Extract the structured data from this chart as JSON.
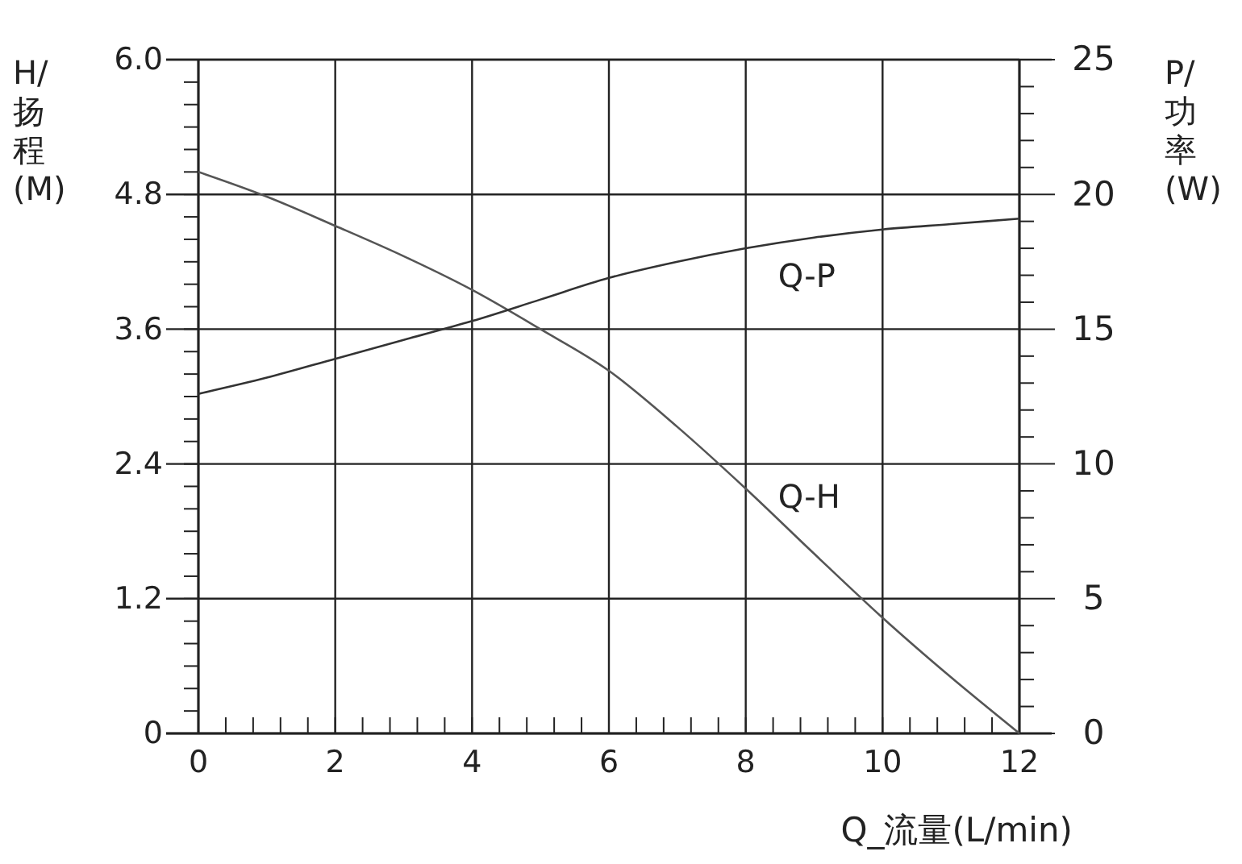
{
  "chart_data": {
    "type": "line",
    "xlabel": "Q_流量(L/min)",
    "ylabel": "H/扬程(M)",
    "y2label": "P/功率(W)",
    "x": [
      0,
      1,
      2,
      3,
      4,
      5,
      6,
      7,
      8,
      9,
      10,
      11,
      12
    ],
    "series": [
      {
        "name": "Q-H",
        "color": "#555555",
        "values": [
          5.0,
          4.78,
          4.52,
          4.25,
          3.95,
          3.6,
          3.23,
          2.73,
          2.18,
          1.6,
          1.03,
          0.5,
          0
        ]
      },
      {
        "name": "Q-P",
        "color": "#333333",
        "axis": "y2",
        "values": [
          12.6,
          13.2,
          13.9,
          14.6,
          15.3,
          16.1,
          16.9,
          17.5,
          18.0,
          18.4,
          18.7,
          18.9,
          19.1
        ]
      }
    ],
    "xlim": [
      0,
      12
    ],
    "xticks": [
      0,
      {
        "value": 0.4,
        "label": null
      },
      {
        "value": 0.8,
        "label": null
      },
      {
        "value": 1.2,
        "label": null
      },
      {
        "value": 1.6,
        "label": null
      },
      2,
      {
        "value": 2.4,
        "label": null
      },
      {
        "value": 2.8,
        "label": null
      },
      {
        "value": 3.2,
        "label": null
      },
      {
        "value": 3.6,
        "label": null
      },
      4,
      {
        "value": 4.4,
        "label": null
      },
      {
        "value": 4.8,
        "label": null
      },
      {
        "value": 5.2,
        "label": null
      },
      {
        "value": 5.6,
        "label": null
      },
      6,
      {
        "value": 6.4,
        "label": null
      },
      {
        "value": 6.8,
        "label": null
      },
      {
        "value": 7.2,
        "label": null
      },
      {
        "value": 7.6,
        "label": null
      },
      8,
      {
        "value": 8.4,
        "label": null
      },
      {
        "value": 8.8,
        "label": null
      },
      {
        "value": 9.2,
        "label": null
      },
      {
        "value": 9.6,
        "label": null
      },
      10,
      {
        "value": 10.4,
        "label": null
      },
      {
        "value": 10.8,
        "label": null
      },
      {
        "value": 11.2,
        "label": null
      },
      {
        "value": 11.6,
        "label": null
      },
      12
    ],
    "ylim": [
      0,
      6
    ],
    "yticks": [
      0,
      {
        "value": 0.2,
        "label": null
      },
      {
        "value": 0.4,
        "label": null
      },
      {
        "value": 0.6,
        "label": null
      },
      {
        "value": 0.8,
        "label": null
      },
      {
        "value": 1.0,
        "label": null
      },
      1.2,
      {
        "value": 1.4,
        "label": null
      },
      {
        "value": 1.6,
        "label": null
      },
      {
        "value": 1.8,
        "label": null
      },
      {
        "value": 2.0,
        "label": null
      },
      {
        "value": 2.2,
        "label": null
      },
      2.4,
      {
        "value": 2.6,
        "label": null
      },
      {
        "value": 2.8,
        "label": null
      },
      {
        "value": 3.0,
        "label": null
      },
      {
        "value": 3.2,
        "label": null
      },
      {
        "value": 3.4,
        "label": null
      },
      3.6,
      {
        "value": 3.8,
        "label": null
      },
      {
        "value": 4.0,
        "label": null
      },
      {
        "value": 4.2,
        "label": null
      },
      {
        "value": 4.4,
        "label": null
      },
      {
        "value": 4.6,
        "label": null
      },
      4.8,
      {
        "value": 5.0,
        "label": null
      },
      {
        "value": 5.2,
        "label": null
      },
      {
        "value": 5.4,
        "label": null
      },
      {
        "value": 5.6,
        "label": null
      },
      {
        "value": 5.8,
        "label": null
      },
      {
        "value": 6,
        "label": "6.0"
      }
    ],
    "y2lim": [
      0,
      25
    ],
    "y2ticks": [
      0,
      {
        "value": 1,
        "label": null
      },
      {
        "value": 2,
        "label": null
      },
      {
        "value": 3,
        "label": null
      },
      {
        "value": 4,
        "label": null
      },
      5,
      {
        "value": 6,
        "label": null
      },
      {
        "value": 7,
        "label": null
      },
      {
        "value": 8,
        "label": null
      },
      {
        "value": 9,
        "label": null
      },
      10,
      {
        "value": 11,
        "label": null
      },
      {
        "value": 12,
        "label": null
      },
      {
        "value": 13,
        "label": null
      },
      {
        "value": 14,
        "label": null
      },
      15,
      {
        "value": 16,
        "label": null
      },
      {
        "value": 17,
        "label": null
      },
      {
        "value": 18,
        "label": null
      },
      {
        "value": 19,
        "label": null
      },
      20,
      {
        "value": 21,
        "label": null
      },
      {
        "value": 22,
        "label": null
      },
      {
        "value": 23,
        "label": null
      },
      {
        "value": 24,
        "label": null
      },
      25
    ],
    "grid": true,
    "marker": "none",
    "line_style": "solid"
  }
}
